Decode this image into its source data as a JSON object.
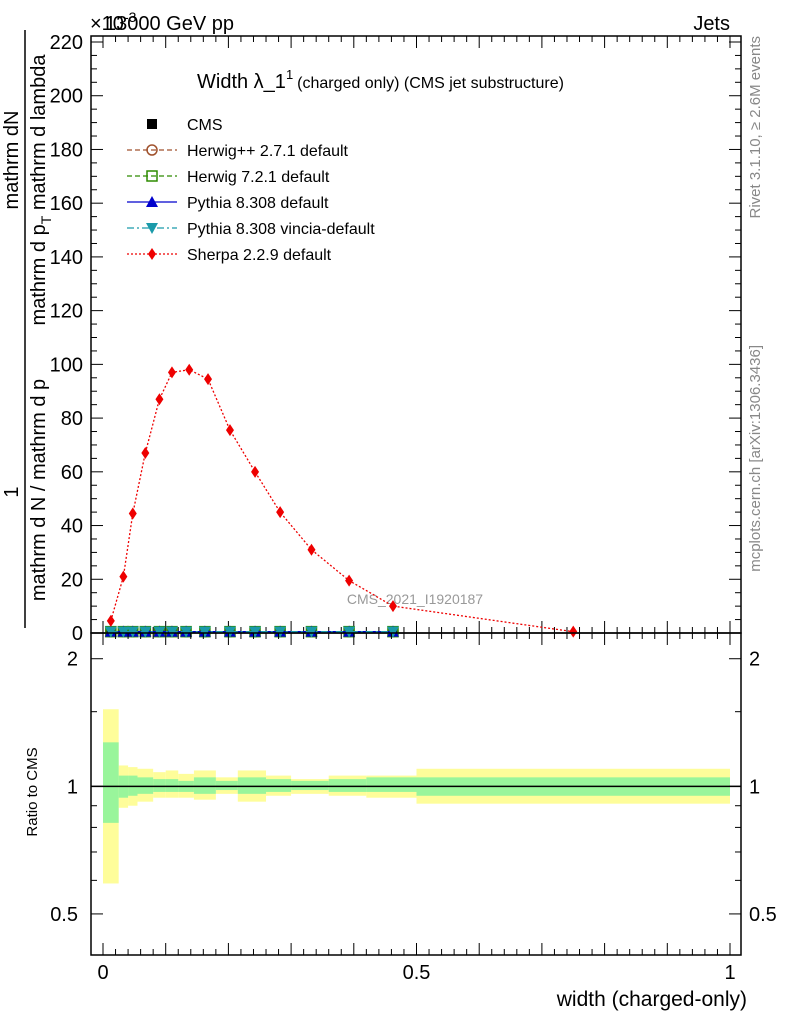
{
  "header": {
    "left": "13000 GeV pp",
    "right": "Jets",
    "exponent": "×10",
    "exponent_power": "-3"
  },
  "side_labels": {
    "rivet": "Rivet 3.1.10, ≥ 2.6M events",
    "mcplots": "mcplots.cern.ch [arXiv:1306.3436]"
  },
  "watermark": "CMS_2021_I1920187",
  "chart_data": [
    {
      "type": "line",
      "title": "Width λ_1",
      "title_sup": "1",
      "title_rest": "(charged only) (CMS jet substructure)",
      "ylabel_numerator": "1",
      "ylabel_denominator": "mathrm d N / mathrm d p",
      "ylabel_denominator_sub": "T",
      "ylabel_denominator_rest": "mathrm d lambda",
      "ylabel_top": "mathrm d",
      "ylabel_top_rest": "N",
      "ylabel_top_mid": "mathrm d p",
      "ylabel_top_mid_rest": "mathrm d lambda",
      "xlim": [
        0,
        1
      ],
      "ylim": [
        0,
        220
      ],
      "yticks": [
        "0",
        "20",
        "40",
        "60",
        "80",
        "100",
        "120",
        "140",
        "160",
        "180",
        "200",
        "220"
      ],
      "legend_position": "top-left",
      "series": [
        {
          "name": "CMS",
          "color": "#000000",
          "marker": "square-filled",
          "line": "none",
          "x": [
            0.0125,
            0.0325,
            0.0475,
            0.0675,
            0.09,
            0.11,
            0.1325,
            0.1625,
            0.2025,
            0.2425,
            0.2825,
            0.3325,
            0.3925,
            0.4625
          ],
          "values": [
            0.5,
            0.5,
            0.5,
            0.5,
            0.5,
            0.5,
            0.5,
            0.5,
            0.5,
            0.5,
            0.5,
            0.5,
            0.5,
            0.5
          ]
        },
        {
          "name": "Herwig++ 2.7.1 default",
          "color": "#a0522d",
          "marker": "circle-open",
          "line": "dashed",
          "x": [
            0.0125,
            0.0325,
            0.0475,
            0.0675,
            0.09,
            0.11,
            0.1325,
            0.1625,
            0.2025,
            0.2425,
            0.2825,
            0.3325,
            0.3925,
            0.4625
          ],
          "values": [
            0.5,
            0.5,
            0.5,
            0.5,
            0.5,
            0.5,
            0.5,
            0.5,
            0.5,
            0.5,
            0.5,
            0.5,
            0.5,
            0.5
          ]
        },
        {
          "name": "Herwig 7.2.1 default",
          "color": "#2e8b00",
          "marker": "square-open",
          "line": "dashed",
          "x": [
            0.0125,
            0.0325,
            0.0475,
            0.0675,
            0.09,
            0.11,
            0.1325,
            0.1625,
            0.2025,
            0.2425,
            0.2825,
            0.3325,
            0.3925,
            0.4625
          ],
          "values": [
            0.5,
            0.5,
            0.5,
            0.5,
            0.5,
            0.5,
            0.5,
            0.5,
            0.5,
            0.5,
            0.5,
            0.5,
            0.5,
            0.5
          ]
        },
        {
          "name": "Pythia 8.308 default",
          "color": "#0000cc",
          "marker": "triangle-up",
          "line": "solid",
          "x": [
            0.0125,
            0.0325,
            0.0475,
            0.0675,
            0.09,
            0.11,
            0.1325,
            0.1625,
            0.2025,
            0.2425,
            0.2825,
            0.3325,
            0.3925,
            0.4625
          ],
          "values": [
            0.5,
            0.5,
            0.5,
            0.5,
            0.5,
            0.5,
            0.5,
            0.5,
            0.5,
            0.5,
            0.5,
            0.5,
            0.5,
            0.5
          ]
        },
        {
          "name": "Pythia 8.308 vincia-default",
          "color": "#1a9aaa",
          "marker": "triangle-down",
          "line": "dashdot",
          "x": [
            0.0125,
            0.0325,
            0.0475,
            0.0675,
            0.09,
            0.11,
            0.1325,
            0.1625,
            0.2025,
            0.2425,
            0.2825,
            0.3325,
            0.3925,
            0.4625
          ],
          "values": [
            0.5,
            0.5,
            0.5,
            0.5,
            0.5,
            0.5,
            0.5,
            0.5,
            0.5,
            0.5,
            0.5,
            0.5,
            0.5,
            0.5
          ]
        },
        {
          "name": "Sherpa 2.2.9 default",
          "color": "#ee0000",
          "marker": "diamond",
          "line": "dotted",
          "x": [
            0.0125,
            0.0325,
            0.0475,
            0.0675,
            0.09,
            0.11,
            0.1375,
            0.1675,
            0.2025,
            0.2425,
            0.2825,
            0.3325,
            0.3925,
            0.4625,
            0.75
          ],
          "values": [
            4.5,
            21,
            44.5,
            67,
            87,
            97,
            98,
            94.5,
            75.5,
            60,
            45,
            31,
            19.5,
            10,
            0.5
          ]
        }
      ]
    },
    {
      "type": "area",
      "ylabel": "Ratio to CMS",
      "xlabel": "width (charged-only)",
      "xlim": [
        0,
        1
      ],
      "ylim": [
        0.4,
        2.3
      ],
      "scale": "log",
      "xticks": [
        "0",
        "0.5",
        "1"
      ],
      "yticks": [
        "0.5",
        "1",
        "2"
      ],
      "bins": [
        {
          "lo": 0.0,
          "hi": 0.025,
          "stat": [
            0.82,
            1.27
          ],
          "total": [
            0.59,
            1.52
          ]
        },
        {
          "lo": 0.025,
          "hi": 0.04,
          "stat": [
            0.94,
            1.06
          ],
          "total": [
            0.89,
            1.12
          ]
        },
        {
          "lo": 0.04,
          "hi": 0.055,
          "stat": [
            0.95,
            1.06
          ],
          "total": [
            0.9,
            1.11
          ]
        },
        {
          "lo": 0.055,
          "hi": 0.08,
          "stat": [
            0.96,
            1.05
          ],
          "total": [
            0.92,
            1.1
          ]
        },
        {
          "lo": 0.08,
          "hi": 0.1,
          "stat": [
            0.97,
            1.04
          ],
          "total": [
            0.94,
            1.08
          ]
        },
        {
          "lo": 0.1,
          "hi": 0.12,
          "stat": [
            0.97,
            1.04
          ],
          "total": [
            0.94,
            1.09
          ]
        },
        {
          "lo": 0.12,
          "hi": 0.145,
          "stat": [
            0.97,
            1.03
          ],
          "total": [
            0.94,
            1.07
          ]
        },
        {
          "lo": 0.145,
          "hi": 0.18,
          "stat": [
            0.96,
            1.05
          ],
          "total": [
            0.93,
            1.09
          ]
        },
        {
          "lo": 0.18,
          "hi": 0.215,
          "stat": [
            0.98,
            1.03
          ],
          "total": [
            0.96,
            1.05
          ]
        },
        {
          "lo": 0.215,
          "hi": 0.26,
          "stat": [
            0.96,
            1.05
          ],
          "total": [
            0.92,
            1.09
          ]
        },
        {
          "lo": 0.26,
          "hi": 0.3,
          "stat": [
            0.97,
            1.04
          ],
          "total": [
            0.95,
            1.06
          ]
        },
        {
          "lo": 0.3,
          "hi": 0.36,
          "stat": [
            0.98,
            1.03
          ],
          "total": [
            0.96,
            1.04
          ]
        },
        {
          "lo": 0.36,
          "hi": 0.42,
          "stat": [
            0.97,
            1.04
          ],
          "total": [
            0.95,
            1.06
          ]
        },
        {
          "lo": 0.42,
          "hi": 0.5,
          "stat": [
            0.97,
            1.05
          ],
          "total": [
            0.94,
            1.06
          ]
        },
        {
          "lo": 0.5,
          "hi": 1.0,
          "stat": [
            0.95,
            1.05
          ],
          "total": [
            0.91,
            1.1
          ]
        }
      ]
    }
  ]
}
